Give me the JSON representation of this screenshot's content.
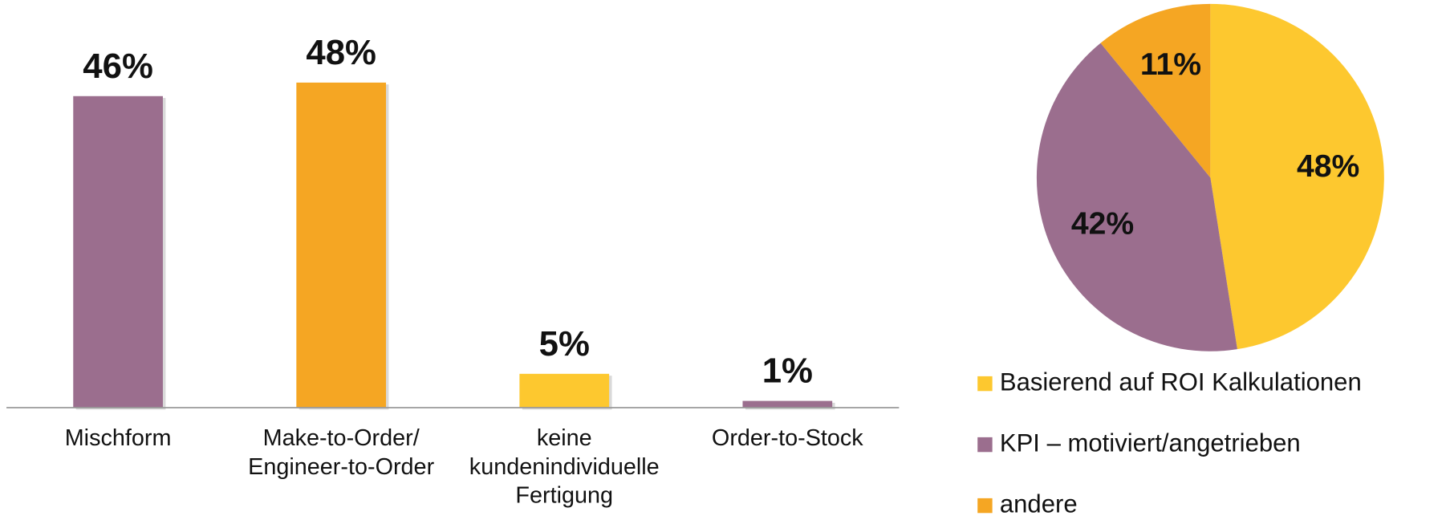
{
  "chart_data": [
    {
      "type": "bar",
      "categories": [
        "Mischform",
        "Make-to-Order/ Engineer-to-Order",
        "keine kundenindividuelle Fertigung",
        "Order-to-Stock"
      ],
      "values": [
        46,
        48,
        5,
        1
      ],
      "value_labels": [
        "46%",
        "48%",
        "5%",
        "1%"
      ],
      "colors": [
        "#9b6e8e",
        "#f5a623",
        "#fdc82f",
        "#9b6e8e"
      ]
    },
    {
      "type": "pie",
      "categories": [
        "Basierend auf ROI Kalkulationen",
        "KPI – motiviert/angetrieben",
        "andere"
      ],
      "values": [
        48,
        42,
        11
      ],
      "value_labels": [
        "48%",
        "42%",
        "11%"
      ],
      "colors": [
        "#fdc82f",
        "#9b6e8e",
        "#f5a623"
      ]
    }
  ]
}
